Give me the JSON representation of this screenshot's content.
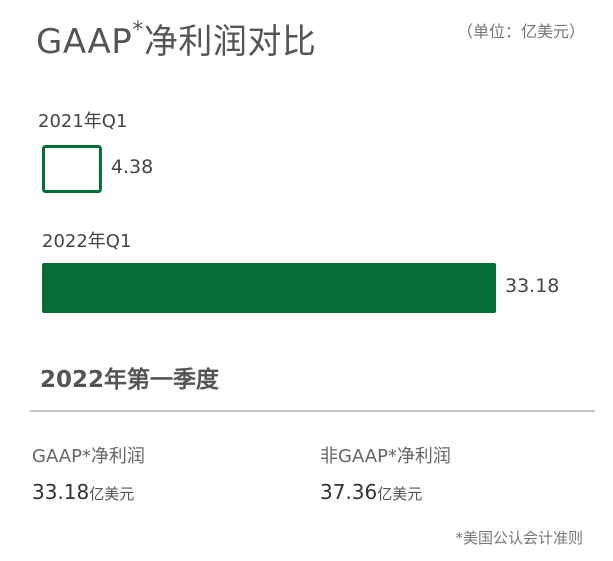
{
  "header": {
    "title_main": "GAAP",
    "title_sup": "*",
    "title_rest": "净利润对比",
    "unit": "（单位：亿美元）"
  },
  "chart_data": {
    "type": "bar",
    "orientation": "horizontal",
    "categories": [
      "2021年Q1",
      "2022年Q1"
    ],
    "values": [
      4.38,
      33.18
    ],
    "value_labels": [
      "4.38",
      "33.18"
    ],
    "unit": "亿美元",
    "bar_styles": [
      "outline",
      "filled"
    ],
    "color": "#076d36"
  },
  "summary": {
    "section_title": "2022年第一季度",
    "metrics": [
      {
        "label": "GAAP*净利润",
        "value": "33.18",
        "unit": "亿美元"
      },
      {
        "label": "非GAAP*净利润",
        "value": "37.36",
        "unit": "亿美元"
      }
    ],
    "footnote": "*美国公认会计准则"
  },
  "colors": {
    "accent": "#076d36",
    "text": "#555555",
    "divider": "#c4c4c4"
  }
}
